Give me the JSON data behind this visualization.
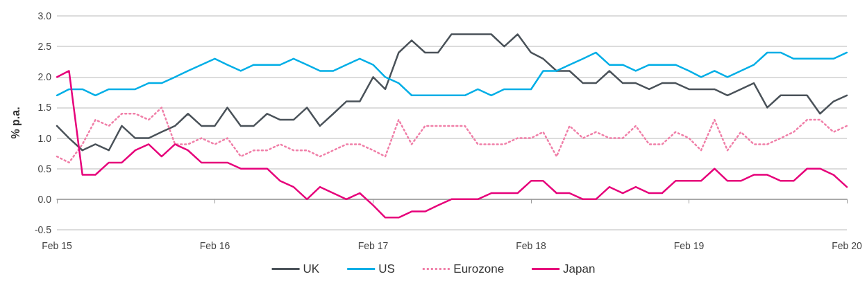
{
  "chart_data": {
    "type": "line",
    "ylabel": "% p.a.",
    "x": [
      "2015-02",
      "2015-03",
      "2015-04",
      "2015-05",
      "2015-06",
      "2015-07",
      "2015-08",
      "2015-09",
      "2015-10",
      "2015-11",
      "2015-12",
      "2016-01",
      "2016-02",
      "2016-03",
      "2016-04",
      "2016-05",
      "2016-06",
      "2016-07",
      "2016-08",
      "2016-09",
      "2016-10",
      "2016-11",
      "2016-12",
      "2017-01",
      "2017-02",
      "2017-03",
      "2017-04",
      "2017-05",
      "2017-06",
      "2017-07",
      "2017-08",
      "2017-09",
      "2017-10",
      "2017-11",
      "2017-12",
      "2018-01",
      "2018-02",
      "2018-03",
      "2018-04",
      "2018-05",
      "2018-06",
      "2018-07",
      "2018-08",
      "2018-09",
      "2018-10",
      "2018-11",
      "2018-12",
      "2019-01",
      "2019-02",
      "2019-03",
      "2019-04",
      "2019-05",
      "2019-06",
      "2019-07",
      "2019-08",
      "2019-09",
      "2019-10",
      "2019-11",
      "2019-12",
      "2020-01",
      "2020-02"
    ],
    "series": [
      {
        "name": "UK",
        "color": "#4a5259",
        "values": [
          1.2,
          1.0,
          0.8,
          0.9,
          0.8,
          1.2,
          1.0,
          1.0,
          1.1,
          1.2,
          1.4,
          1.2,
          1.2,
          1.5,
          1.2,
          1.2,
          1.4,
          1.3,
          1.3,
          1.5,
          1.2,
          1.4,
          1.6,
          1.6,
          2.0,
          1.8,
          2.4,
          2.6,
          2.4,
          2.4,
          2.7,
          2.7,
          2.7,
          2.7,
          2.5,
          2.7,
          2.4,
          2.3,
          2.1,
          2.1,
          1.9,
          1.9,
          2.1,
          1.9,
          1.9,
          1.8,
          1.9,
          1.9,
          1.8,
          1.8,
          1.8,
          1.7,
          1.8,
          1.9,
          1.5,
          1.7,
          1.7,
          1.7,
          1.4,
          1.6,
          1.7
        ]
      },
      {
        "name": "US",
        "color": "#00aee6",
        "values": [
          1.7,
          1.8,
          1.8,
          1.7,
          1.8,
          1.8,
          1.8,
          1.9,
          1.9,
          2.0,
          2.1,
          2.2,
          2.3,
          2.2,
          2.1,
          2.2,
          2.2,
          2.2,
          2.3,
          2.2,
          2.1,
          2.1,
          2.2,
          2.3,
          2.2,
          2.0,
          1.9,
          1.7,
          1.7,
          1.7,
          1.7,
          1.7,
          1.8,
          1.7,
          1.8,
          1.8,
          1.8,
          2.1,
          2.1,
          2.2,
          2.3,
          2.4,
          2.2,
          2.2,
          2.1,
          2.2,
          2.2,
          2.2,
          2.1,
          2.0,
          2.1,
          2.0,
          2.1,
          2.2,
          2.4,
          2.4,
          2.3,
          2.3,
          2.3,
          2.3,
          2.4
        ]
      },
      {
        "name": "Eurozone",
        "color": "#f07fa8",
        "line_style": "dotted",
        "values": [
          0.7,
          0.6,
          0.9,
          1.3,
          1.2,
          1.4,
          1.4,
          1.3,
          1.5,
          0.9,
          0.9,
          1.0,
          0.9,
          1.0,
          0.7,
          0.8,
          0.8,
          0.9,
          0.8,
          0.8,
          0.7,
          0.8,
          0.9,
          0.9,
          0.8,
          0.7,
          1.3,
          0.9,
          1.2,
          1.2,
          1.2,
          1.2,
          0.9,
          0.9,
          0.9,
          1.0,
          1.0,
          1.1,
          0.7,
          1.2,
          1.0,
          1.1,
          1.0,
          1.0,
          1.2,
          0.9,
          0.9,
          1.1,
          1.0,
          0.8,
          1.3,
          0.8,
          1.1,
          0.9,
          0.9,
          1.0,
          1.1,
          1.3,
          1.3,
          1.1,
          1.2
        ]
      },
      {
        "name": "Japan",
        "color": "#e6007a",
        "values": [
          2.0,
          2.1,
          0.4,
          0.4,
          0.6,
          0.6,
          0.8,
          0.9,
          0.7,
          0.9,
          0.8,
          0.6,
          0.6,
          0.6,
          0.5,
          0.5,
          0.5,
          0.3,
          0.2,
          0.0,
          0.2,
          0.1,
          0.0,
          0.1,
          -0.1,
          -0.3,
          -0.3,
          -0.2,
          -0.2,
          -0.1,
          0.0,
          0.0,
          0.0,
          0.1,
          0.1,
          0.1,
          0.3,
          0.3,
          0.1,
          0.1,
          0.0,
          0.0,
          0.2,
          0.1,
          0.2,
          0.1,
          0.1,
          0.3,
          0.3,
          0.3,
          0.5,
          0.3,
          0.3,
          0.4,
          0.4,
          0.3,
          0.3,
          0.5,
          0.5,
          0.4,
          0.2
        ]
      }
    ],
    "xlim": [
      "2015-02",
      "2020-02"
    ],
    "xticks": [
      {
        "value": "2015-02",
        "label": "Feb 15"
      },
      {
        "value": "2016-02",
        "label": "Feb 16"
      },
      {
        "value": "2017-02",
        "label": "Feb 17"
      },
      {
        "value": "2018-02",
        "label": "Feb 18"
      },
      {
        "value": "2019-02",
        "label": "Feb 19"
      },
      {
        "value": "2020-02",
        "label": "Feb 20"
      }
    ],
    "ylim": [
      -0.5,
      3.0
    ],
    "yticks": [
      {
        "value": -0.5,
        "label": "-0.5"
      },
      {
        "value": 0,
        "label": "0.0"
      },
      {
        "value": 0.5,
        "label": "0.5"
      },
      {
        "value": 1,
        "label": "1.0"
      },
      {
        "value": 1.5,
        "label": "1.5"
      },
      {
        "value": 2,
        "label": "2.0"
      },
      {
        "value": 2.5,
        "label": "2.5"
      },
      {
        "value": 3,
        "label": "3.0"
      }
    ],
    "grid": "y",
    "legend": "bottom",
    "marker": "none"
  }
}
